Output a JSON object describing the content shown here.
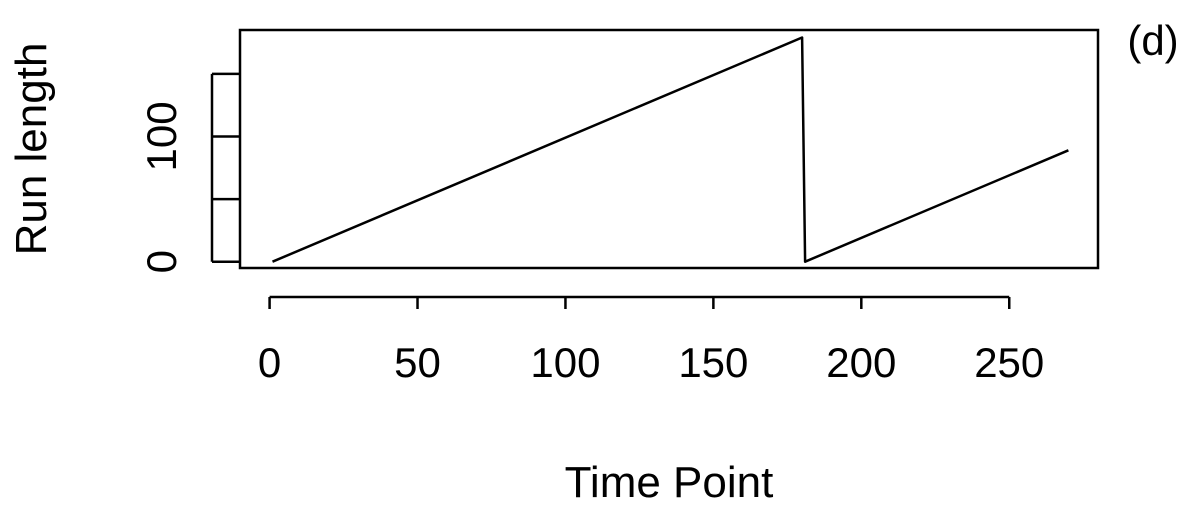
{
  "chart_data": {
    "type": "line",
    "title": "",
    "panel_label": "(d)",
    "xlabel": "Time Point",
    "ylabel": "Run length",
    "xlim": [
      -10,
      280
    ],
    "ylim": [
      -5,
      185
    ],
    "xticks": [
      0,
      50,
      100,
      150,
      200,
      250
    ],
    "yticks": [
      0,
      50,
      100,
      150
    ],
    "ytick_labels": [
      "0",
      "",
      "100",
      ""
    ],
    "grid": false,
    "line_color": "#000000",
    "series": [
      {
        "x": [
          1,
          180,
          181,
          270
        ],
        "y": [
          0,
          179,
          0,
          89
        ]
      }
    ]
  }
}
